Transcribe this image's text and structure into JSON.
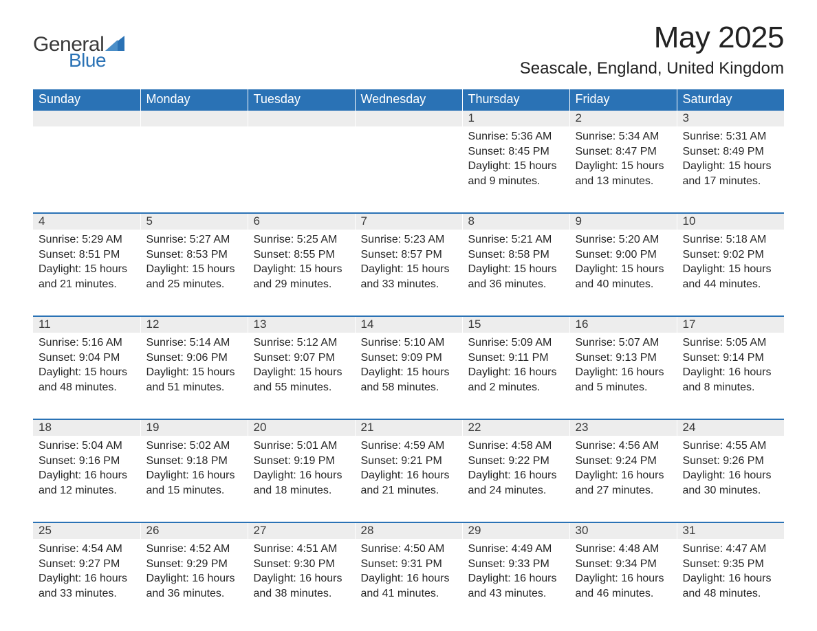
{
  "brand": {
    "word1": "General",
    "word2": "Blue",
    "logo_color": "#2a72b5",
    "text_color": "#3a3a3a"
  },
  "title": "May 2025",
  "location": "Seascale, England, United Kingdom",
  "colors": {
    "header_bg": "#2a72b5",
    "header_text": "#ffffff",
    "daynum_bg": "#ededed",
    "row_border": "#2a72b5",
    "body_text": "#262626"
  },
  "day_headers": [
    "Sunday",
    "Monday",
    "Tuesday",
    "Wednesday",
    "Thursday",
    "Friday",
    "Saturday"
  ],
  "weeks": [
    [
      null,
      null,
      null,
      null,
      {
        "n": "1",
        "sunrise": "Sunrise: 5:36 AM",
        "sunset": "Sunset: 8:45 PM",
        "dl1": "Daylight: 15 hours",
        "dl2": "and 9 minutes."
      },
      {
        "n": "2",
        "sunrise": "Sunrise: 5:34 AM",
        "sunset": "Sunset: 8:47 PM",
        "dl1": "Daylight: 15 hours",
        "dl2": "and 13 minutes."
      },
      {
        "n": "3",
        "sunrise": "Sunrise: 5:31 AM",
        "sunset": "Sunset: 8:49 PM",
        "dl1": "Daylight: 15 hours",
        "dl2": "and 17 minutes."
      }
    ],
    [
      {
        "n": "4",
        "sunrise": "Sunrise: 5:29 AM",
        "sunset": "Sunset: 8:51 PM",
        "dl1": "Daylight: 15 hours",
        "dl2": "and 21 minutes."
      },
      {
        "n": "5",
        "sunrise": "Sunrise: 5:27 AM",
        "sunset": "Sunset: 8:53 PM",
        "dl1": "Daylight: 15 hours",
        "dl2": "and 25 minutes."
      },
      {
        "n": "6",
        "sunrise": "Sunrise: 5:25 AM",
        "sunset": "Sunset: 8:55 PM",
        "dl1": "Daylight: 15 hours",
        "dl2": "and 29 minutes."
      },
      {
        "n": "7",
        "sunrise": "Sunrise: 5:23 AM",
        "sunset": "Sunset: 8:57 PM",
        "dl1": "Daylight: 15 hours",
        "dl2": "and 33 minutes."
      },
      {
        "n": "8",
        "sunrise": "Sunrise: 5:21 AM",
        "sunset": "Sunset: 8:58 PM",
        "dl1": "Daylight: 15 hours",
        "dl2": "and 36 minutes."
      },
      {
        "n": "9",
        "sunrise": "Sunrise: 5:20 AM",
        "sunset": "Sunset: 9:00 PM",
        "dl1": "Daylight: 15 hours",
        "dl2": "and 40 minutes."
      },
      {
        "n": "10",
        "sunrise": "Sunrise: 5:18 AM",
        "sunset": "Sunset: 9:02 PM",
        "dl1": "Daylight: 15 hours",
        "dl2": "and 44 minutes."
      }
    ],
    [
      {
        "n": "11",
        "sunrise": "Sunrise: 5:16 AM",
        "sunset": "Sunset: 9:04 PM",
        "dl1": "Daylight: 15 hours",
        "dl2": "and 48 minutes."
      },
      {
        "n": "12",
        "sunrise": "Sunrise: 5:14 AM",
        "sunset": "Sunset: 9:06 PM",
        "dl1": "Daylight: 15 hours",
        "dl2": "and 51 minutes."
      },
      {
        "n": "13",
        "sunrise": "Sunrise: 5:12 AM",
        "sunset": "Sunset: 9:07 PM",
        "dl1": "Daylight: 15 hours",
        "dl2": "and 55 minutes."
      },
      {
        "n": "14",
        "sunrise": "Sunrise: 5:10 AM",
        "sunset": "Sunset: 9:09 PM",
        "dl1": "Daylight: 15 hours",
        "dl2": "and 58 minutes."
      },
      {
        "n": "15",
        "sunrise": "Sunrise: 5:09 AM",
        "sunset": "Sunset: 9:11 PM",
        "dl1": "Daylight: 16 hours",
        "dl2": "and 2 minutes."
      },
      {
        "n": "16",
        "sunrise": "Sunrise: 5:07 AM",
        "sunset": "Sunset: 9:13 PM",
        "dl1": "Daylight: 16 hours",
        "dl2": "and 5 minutes."
      },
      {
        "n": "17",
        "sunrise": "Sunrise: 5:05 AM",
        "sunset": "Sunset: 9:14 PM",
        "dl1": "Daylight: 16 hours",
        "dl2": "and 8 minutes."
      }
    ],
    [
      {
        "n": "18",
        "sunrise": "Sunrise: 5:04 AM",
        "sunset": "Sunset: 9:16 PM",
        "dl1": "Daylight: 16 hours",
        "dl2": "and 12 minutes."
      },
      {
        "n": "19",
        "sunrise": "Sunrise: 5:02 AM",
        "sunset": "Sunset: 9:18 PM",
        "dl1": "Daylight: 16 hours",
        "dl2": "and 15 minutes."
      },
      {
        "n": "20",
        "sunrise": "Sunrise: 5:01 AM",
        "sunset": "Sunset: 9:19 PM",
        "dl1": "Daylight: 16 hours",
        "dl2": "and 18 minutes."
      },
      {
        "n": "21",
        "sunrise": "Sunrise: 4:59 AM",
        "sunset": "Sunset: 9:21 PM",
        "dl1": "Daylight: 16 hours",
        "dl2": "and 21 minutes."
      },
      {
        "n": "22",
        "sunrise": "Sunrise: 4:58 AM",
        "sunset": "Sunset: 9:22 PM",
        "dl1": "Daylight: 16 hours",
        "dl2": "and 24 minutes."
      },
      {
        "n": "23",
        "sunrise": "Sunrise: 4:56 AM",
        "sunset": "Sunset: 9:24 PM",
        "dl1": "Daylight: 16 hours",
        "dl2": "and 27 minutes."
      },
      {
        "n": "24",
        "sunrise": "Sunrise: 4:55 AM",
        "sunset": "Sunset: 9:26 PM",
        "dl1": "Daylight: 16 hours",
        "dl2": "and 30 minutes."
      }
    ],
    [
      {
        "n": "25",
        "sunrise": "Sunrise: 4:54 AM",
        "sunset": "Sunset: 9:27 PM",
        "dl1": "Daylight: 16 hours",
        "dl2": "and 33 minutes."
      },
      {
        "n": "26",
        "sunrise": "Sunrise: 4:52 AM",
        "sunset": "Sunset: 9:29 PM",
        "dl1": "Daylight: 16 hours",
        "dl2": "and 36 minutes."
      },
      {
        "n": "27",
        "sunrise": "Sunrise: 4:51 AM",
        "sunset": "Sunset: 9:30 PM",
        "dl1": "Daylight: 16 hours",
        "dl2": "and 38 minutes."
      },
      {
        "n": "28",
        "sunrise": "Sunrise: 4:50 AM",
        "sunset": "Sunset: 9:31 PM",
        "dl1": "Daylight: 16 hours",
        "dl2": "and 41 minutes."
      },
      {
        "n": "29",
        "sunrise": "Sunrise: 4:49 AM",
        "sunset": "Sunset: 9:33 PM",
        "dl1": "Daylight: 16 hours",
        "dl2": "and 43 minutes."
      },
      {
        "n": "30",
        "sunrise": "Sunrise: 4:48 AM",
        "sunset": "Sunset: 9:34 PM",
        "dl1": "Daylight: 16 hours",
        "dl2": "and 46 minutes."
      },
      {
        "n": "31",
        "sunrise": "Sunrise: 4:47 AM",
        "sunset": "Sunset: 9:35 PM",
        "dl1": "Daylight: 16 hours",
        "dl2": "and 48 minutes."
      }
    ]
  ]
}
